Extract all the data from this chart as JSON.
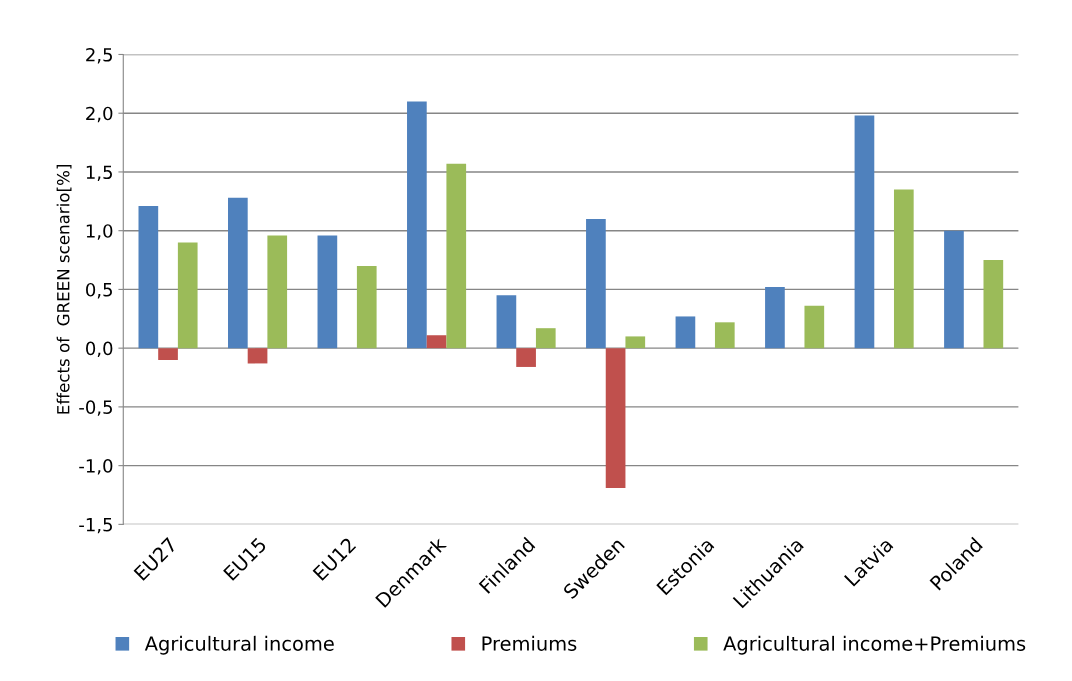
{
  "chart_data": {
    "type": "bar",
    "ylabel": "Effects of  GREEN scenario[%]",
    "categories": [
      "EU27",
      "EU15",
      "EU12",
      "Denmark",
      "Finland",
      "Sweden",
      "Estonia",
      "Lithuania",
      "Latvia",
      "Poland"
    ],
    "series": [
      {
        "name": "Agricultural income",
        "color": "#4f81bd",
        "values": [
          1.21,
          1.28,
          0.96,
          2.1,
          0.45,
          1.1,
          0.27,
          0.52,
          1.98,
          1.0
        ]
      },
      {
        "name": "Premiums",
        "color": "#c0504d",
        "values": [
          -0.1,
          -0.13,
          0,
          0.11,
          -0.16,
          -1.19,
          0,
          0,
          0,
          0
        ]
      },
      {
        "name": "Agricultural income+Premiums",
        "color": "#9bbb59",
        "values": [
          0.9,
          0.96,
          0.7,
          1.57,
          0.17,
          0.1,
          0.22,
          0.36,
          1.35,
          0.75
        ]
      }
    ],
    "ylim": [
      -1.5,
      2.5
    ],
    "yticks": [
      {
        "value": -1.5,
        "label": "-1,5"
      },
      {
        "value": -1.0,
        "label": "-1,0"
      },
      {
        "value": -0.5,
        "label": "-0,5"
      },
      {
        "value": 0,
        "label": "0,0"
      },
      {
        "value": 0.5,
        "label": "0,5"
      },
      {
        "value": 1.0,
        "label": "1,0"
      },
      {
        "value": 1.5,
        "label": "1,5"
      },
      {
        "value": 2.0,
        "label": "2,0"
      },
      {
        "value": 2.5,
        "label": "2,5"
      }
    ],
    "grid": "y",
    "legend": "bottom"
  }
}
